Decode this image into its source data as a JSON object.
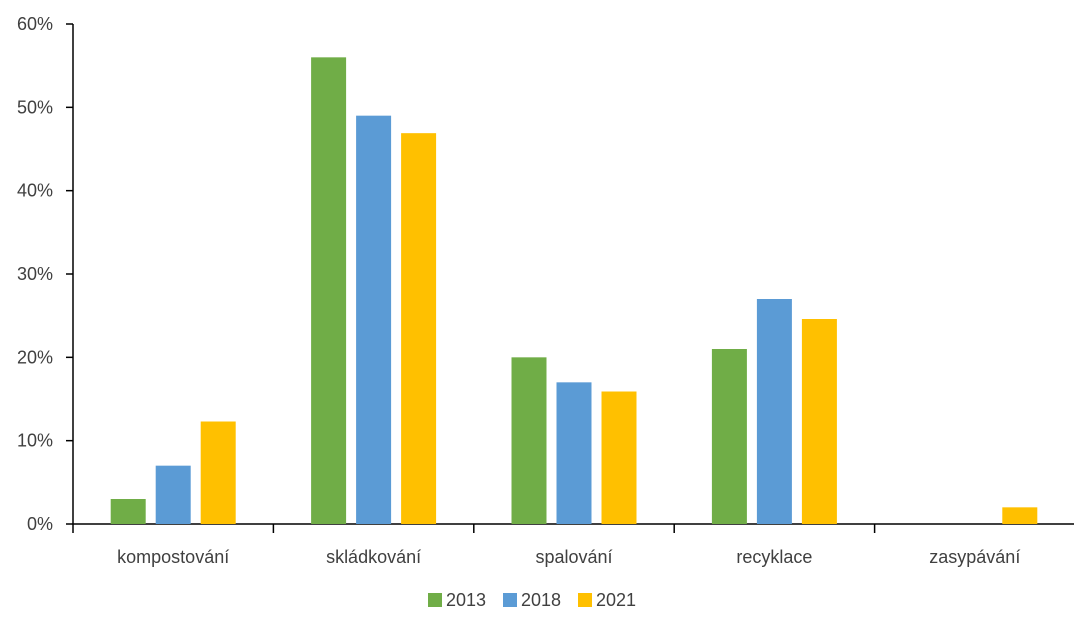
{
  "chart_data": {
    "type": "bar",
    "categories": [
      "kompostování",
      "skládkování",
      "spalování",
      "recyklace",
      "zasypávání"
    ],
    "series": [
      {
        "name": "2013",
        "values": [
          3,
          56,
          20,
          21,
          0
        ],
        "color": "#70AD47"
      },
      {
        "name": "2018",
        "values": [
          7,
          49,
          17,
          27,
          0
        ],
        "color": "#5B9BD5"
      },
      {
        "name": "2021",
        "values": [
          12.3,
          46.9,
          15.9,
          24.6,
          2
        ],
        "color": "#FFC000"
      }
    ],
    "y_ticks": [
      "0%",
      "10%",
      "20%",
      "30%",
      "40%",
      "50%",
      "60%"
    ],
    "ylim": [
      0,
      60
    ],
    "y_unit": "%",
    "grid": false,
    "legend_position": "bottom"
  }
}
